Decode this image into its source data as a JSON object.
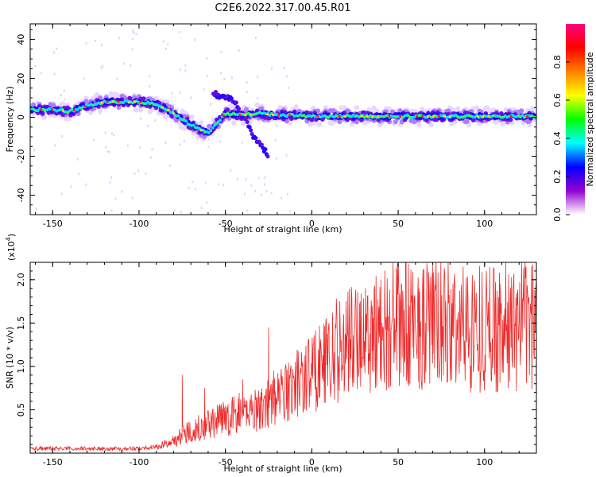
{
  "title": "C2E6.2022.317.00.45.R01",
  "chart_data": [
    {
      "type": "heatmap",
      "xlabel": "Height of straight line (km)",
      "ylabel": "Frequency (Hz)",
      "xlim": [
        -163,
        130
      ],
      "ylim": [
        -50,
        48
      ],
      "xticks": [
        -150,
        -100,
        -50,
        0,
        50,
        100
      ],
      "yticks": [
        -40,
        -20,
        0,
        20,
        40
      ],
      "colorbar": {
        "label": "Normalized spectral amplitude",
        "range": [
          0.0,
          1.0
        ],
        "ticks": [
          "0.0",
          "0.2",
          "0.4",
          "0.6",
          "0.8"
        ],
        "colormap": [
          "#ffffff",
          "#9400d3",
          "#0000ff",
          "#00ffff",
          "#00ff00",
          "#ffff00",
          "#ff7f00",
          "#ff0000",
          "#ff007f"
        ]
      },
      "trace": {
        "x": [
          -163,
          -150,
          -140,
          -130,
          -120,
          -110,
          -100,
          -90,
          -80,
          -70,
          -60,
          -50,
          -40,
          -30,
          -20,
          -10,
          0,
          20,
          40,
          60,
          80,
          100,
          120,
          130
        ],
        "y": [
          4,
          4,
          3,
          6,
          8,
          8,
          8,
          7,
          2,
          -4,
          -8,
          2,
          1,
          2,
          1,
          1,
          0.5,
          0.5,
          0.5,
          0.5,
          0.5,
          0.5,
          0.5,
          0.5
        ]
      },
      "branch": {
        "x": [
          -57,
          -50,
          -45,
          -40,
          -35,
          -30,
          -25
        ],
        "y": [
          12,
          10,
          8,
          2,
          -8,
          -14,
          -20
        ]
      }
    },
    {
      "type": "line",
      "xlabel": "Height of straight line (km)",
      "ylabel": "SNR (10 * v/v)",
      "scale_label": "(x10",
      "scale_exp": "4",
      "scale_close": ")",
      "xlim": [
        -163,
        130
      ],
      "ylim": [
        0.0,
        2.2
      ],
      "xticks": [
        -150,
        -100,
        -50,
        0,
        50,
        100
      ],
      "yticks": [
        "0.5",
        "1.0",
        "1.5",
        "2.0"
      ],
      "series_color": "#ee2a2a",
      "envelope": {
        "x": [
          -163,
          -100,
          -90,
          -80,
          -75,
          -70,
          -60,
          -50,
          -40,
          -30,
          -20,
          -10,
          0,
          10,
          20,
          30,
          40,
          50,
          60,
          70,
          80,
          90,
          100,
          110,
          120,
          130
        ],
        "y": [
          0.05,
          0.05,
          0.07,
          0.13,
          0.2,
          0.25,
          0.32,
          0.38,
          0.45,
          0.5,
          0.6,
          0.75,
          0.9,
          1.05,
          1.2,
          1.3,
          1.35,
          1.4,
          1.4,
          1.4,
          1.38,
          1.38,
          1.38,
          1.38,
          1.38,
          1.4
        ]
      },
      "peaks": {
        "x": [
          -75,
          -62,
          -40,
          -25,
          -22,
          -15,
          10,
          28,
          35,
          40,
          52,
          62,
          68,
          70,
          77,
          97,
          108,
          124,
          127
        ],
        "y": [
          0.9,
          0.75,
          0.85,
          1.45,
          0.95,
          1.0,
          1.5,
          1.75,
          1.7,
          2.0,
          1.95,
          1.9,
          1.75,
          2.2,
          2.0,
          1.9,
          1.8,
          2.15,
          1.6
        ]
      }
    }
  ]
}
